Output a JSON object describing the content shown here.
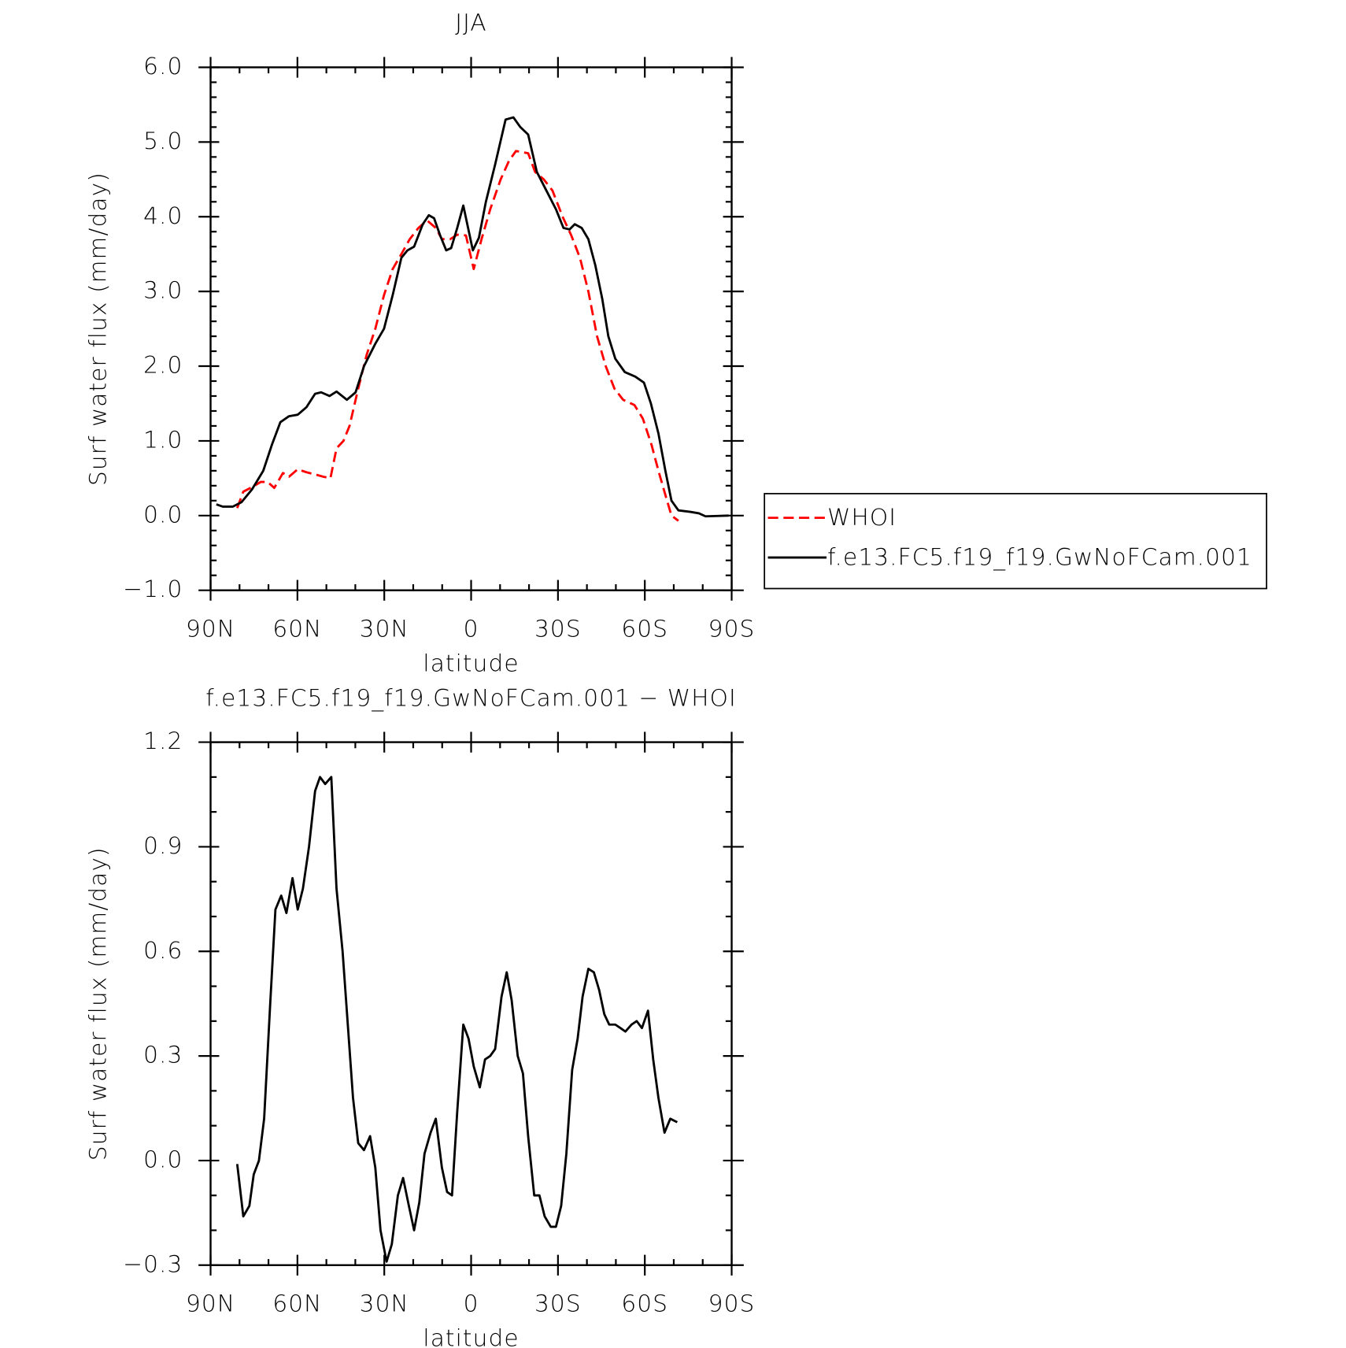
{
  "chart_data": [
    {
      "type": "line",
      "title": "JJA",
      "xlabel": "latitude",
      "ylabel": "Surf water flux (mm/day)",
      "xlim": [
        90,
        -90
      ],
      "xticks": [
        {
          "value": 90,
          "label": "90N"
        },
        {
          "value": 60,
          "label": "60N"
        },
        {
          "value": 30,
          "label": "30N"
        },
        0,
        {
          "value": -30,
          "label": "30S"
        },
        {
          "value": -60,
          "label": "60S"
        },
        {
          "value": -90,
          "label": "90S"
        }
      ],
      "ylim": [
        -1,
        6
      ],
      "yticks": [
        {
          "value": -1,
          "label": "−1.0"
        },
        {
          "value": 0,
          "label": "0.0"
        },
        {
          "value": 1,
          "label": "1.0"
        },
        {
          "value": 2,
          "label": "2.0"
        },
        {
          "value": 3,
          "label": "3.0"
        },
        {
          "value": 4,
          "label": "4.0"
        },
        {
          "value": 5,
          "label": "5.0"
        },
        {
          "value": 6,
          "label": "6.0"
        }
      ],
      "legend": "outside right",
      "series": [
        {
          "name": "WHOI",
          "color": "#ff0000",
          "line_style": "dashed",
          "x": [
            80.8,
            78.7,
            75.7,
            72.7,
            70.3,
            68,
            65,
            62.9,
            59.9,
            56.9,
            53.9,
            51,
            48.6,
            46.5,
            44.1,
            42,
            39,
            36.1,
            33.1,
            30.1,
            27.1,
            24.1,
            21.2,
            18.2,
            15.2,
            12.2,
            10.1,
            7.2,
            4.8,
            1.8,
            -0.9,
            -3.6,
            -6.6,
            -10.2,
            -13.1,
            -15.5,
            -19.7,
            -22.1,
            -25.1,
            -28.1,
            -31.6,
            -34.6,
            -37.6,
            -40.5,
            -43.5,
            -46.5,
            -49.5,
            -52.5,
            -56.4,
            -59.3,
            -62.3,
            -64.7,
            -67.3,
            -69.2,
            -71.6
          ],
          "values": [
            0.1,
            0.32,
            0.38,
            0.45,
            0.45,
            0.37,
            0.57,
            0.52,
            0.62,
            0.58,
            0.55,
            0.52,
            0.5,
            0.9,
            1.0,
            1.2,
            1.7,
            2.15,
            2.5,
            2.95,
            3.3,
            3.5,
            3.7,
            3.85,
            3.95,
            3.85,
            3.7,
            3.7,
            3.76,
            3.75,
            3.3,
            3.7,
            4.1,
            4.5,
            4.75,
            4.88,
            4.85,
            4.6,
            4.5,
            4.35,
            4.0,
            3.75,
            3.45,
            3.0,
            2.4,
            2.0,
            1.7,
            1.55,
            1.48,
            1.3,
            0.95,
            0.6,
            0.25,
            0.0,
            -0.07
          ]
        },
        {
          "name": "f.e13.FC5.f19_f19.GwNoFCam.001",
          "color": "#000000",
          "line_style": "solid",
          "x": [
            88,
            85.8,
            82.3,
            79.3,
            75.7,
            71.8,
            68.8,
            65.9,
            62.9,
            59.9,
            56.9,
            53.9,
            51.8,
            48.9,
            46.5,
            42.9,
            39.9,
            37,
            33.1,
            30.1,
            27.1,
            24.1,
            22,
            19.7,
            16.7,
            14.6,
            12.8,
            10.7,
            8.6,
            6.9,
            4.8,
            2.7,
            -0.6,
            -2.7,
            -5.1,
            -8.3,
            -11.9,
            -14.6,
            -17,
            -19.7,
            -22.7,
            -26,
            -29.3,
            -31.9,
            -34,
            -35.8,
            -38.2,
            -40.5,
            -42.9,
            -45.3,
            -47.4,
            -49.8,
            -53.1,
            -56.7,
            -59.7,
            -62.1,
            -64.7,
            -67.1,
            -69.2,
            -71.6,
            -75.7,
            -78.7,
            -81,
            -89
          ],
          "values": [
            0.15,
            0.12,
            0.12,
            0.18,
            0.35,
            0.6,
            0.95,
            1.25,
            1.33,
            1.35,
            1.45,
            1.63,
            1.65,
            1.6,
            1.66,
            1.55,
            1.65,
            2.0,
            2.3,
            2.5,
            2.95,
            3.45,
            3.55,
            3.6,
            3.9,
            4.02,
            3.98,
            3.75,
            3.55,
            3.58,
            3.85,
            4.15,
            3.55,
            3.72,
            4.2,
            4.7,
            5.3,
            5.33,
            5.2,
            5.1,
            4.6,
            4.35,
            4.1,
            3.85,
            3.83,
            3.9,
            3.85,
            3.7,
            3.35,
            2.9,
            2.4,
            2.1,
            1.92,
            1.86,
            1.78,
            1.5,
            1.1,
            0.6,
            0.2,
            0.07,
            0.05,
            0.03,
            -0.01,
            0.0
          ]
        }
      ]
    },
    {
      "type": "line",
      "title": "f.e13.FC5.f19_f19.GwNoFCam.001 − WHOI",
      "xlabel": "latitude",
      "ylabel": "Surf water flux (mm/day)",
      "xlim": [
        90,
        -90
      ],
      "xticks": [
        {
          "value": 90,
          "label": "90N"
        },
        {
          "value": 60,
          "label": "60N"
        },
        {
          "value": 30,
          "label": "30N"
        },
        0,
        {
          "value": -30,
          "label": "30S"
        },
        {
          "value": -60,
          "label": "60S"
        },
        {
          "value": -90,
          "label": "90S"
        }
      ],
      "ylim": [
        -0.3,
        1.2
      ],
      "yticks": [
        {
          "value": -0.3,
          "label": "−0.3"
        },
        {
          "value": 0,
          "label": "0.0"
        },
        0.3,
        0.6,
        0.9,
        1.2
      ],
      "series": [
        {
          "color": "#000000",
          "line_style": "solid",
          "x": [
            80.8,
            78.7,
            76.6,
            75.1,
            73.3,
            71.5,
            69.4,
            67.6,
            65.6,
            63.8,
            61.7,
            59.9,
            58.1,
            56,
            53.9,
            52.2,
            50.4,
            48.3,
            46.5,
            44.4,
            42.6,
            40.8,
            39,
            37,
            34.9,
            33.1,
            31.3,
            29.2,
            27.4,
            25.3,
            23.5,
            21.5,
            19.7,
            17.9,
            16.1,
            14,
            12.2,
            10.1,
            8.3,
            6.6,
            4.8,
            2.7,
            0.9,
            -0.9,
            -3,
            -4.8,
            -6.6,
            -8.3,
            -10.5,
            -12.3,
            -14,
            -16.1,
            -17.9,
            -19.7,
            -21.8,
            -23.6,
            -25.4,
            -27.5,
            -29.3,
            -31.1,
            -32.9,
            -34.9,
            -36.8,
            -38.5,
            -40.5,
            -42.4,
            -44.2,
            -46,
            -47.7,
            -49.8,
            -51.6,
            -53.3,
            -55.4,
            -57.2,
            -59,
            -61.1,
            -62.9,
            -64.7,
            -66.8,
            -68.8,
            -71.2
          ],
          "values": [
            -0.01,
            -0.16,
            -0.13,
            -0.04,
            0.0,
            0.12,
            0.45,
            0.72,
            0.76,
            0.71,
            0.81,
            0.72,
            0.78,
            0.9,
            1.06,
            1.1,
            1.08,
            1.1,
            0.78,
            0.6,
            0.39,
            0.18,
            0.05,
            0.03,
            0.07,
            -0.02,
            -0.2,
            -0.29,
            -0.24,
            -0.1,
            -0.05,
            -0.13,
            -0.2,
            -0.12,
            0.02,
            0.08,
            0.12,
            -0.02,
            -0.09,
            -0.1,
            0.14,
            0.39,
            0.35,
            0.27,
            0.21,
            0.29,
            0.3,
            0.32,
            0.47,
            0.54,
            0.46,
            0.3,
            0.25,
            0.07,
            -0.1,
            -0.1,
            -0.16,
            -0.19,
            -0.19,
            -0.13,
            0.02,
            0.26,
            0.35,
            0.47,
            0.55,
            0.54,
            0.49,
            0.42,
            0.39,
            0.39,
            0.38,
            0.37,
            0.39,
            0.4,
            0.38,
            0.43,
            0.29,
            0.18,
            0.08,
            0.12,
            0.11
          ]
        }
      ]
    }
  ]
}
